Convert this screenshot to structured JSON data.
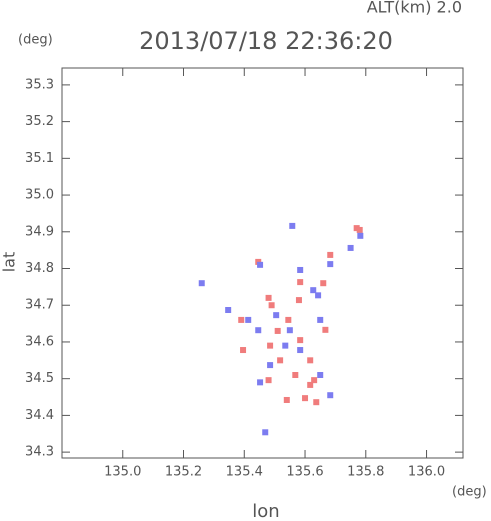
{
  "chart_data": {
    "type": "scatter",
    "title": "2013/07/18 22:36:20",
    "subtitle": "ALT(km)  2.0",
    "y_unit": "(deg)",
    "x_unit": "(deg)",
    "xlabel": "lon",
    "ylabel": "lat",
    "xlim": [
      134.8,
      136.12
    ],
    "ylim": [
      34.284,
      35.346
    ],
    "xticks": [
      {
        "value": 135.0,
        "label": "135.0"
      },
      135.2,
      135.4,
      135.6,
      135.8,
      {
        "value": 136.0,
        "label": "136.0"
      }
    ],
    "yticks": [
      34.3,
      34.4,
      34.5,
      34.6,
      34.7,
      34.8,
      34.9,
      {
        "value": 35.0,
        "label": "35.0"
      },
      35.1,
      35.2,
      35.3
    ],
    "series": [
      {
        "color": "#f07c7c",
        "x": [
          135.78,
          135.77,
          135.584,
          135.58,
          135.48,
          135.49,
          135.39,
          135.396,
          135.545,
          135.584,
          135.518,
          135.568,
          135.48,
          135.617,
          135.6,
          135.637,
          135.63,
          135.54,
          135.485,
          135.66,
          135.683,
          135.446,
          135.617,
          135.51,
          135.667
        ],
        "y": [
          34.905,
          34.91,
          34.763,
          34.714,
          34.72,
          34.7,
          34.66,
          34.578,
          34.66,
          34.605,
          34.55,
          34.51,
          34.496,
          34.483,
          34.447,
          34.436,
          34.496,
          34.442,
          34.59,
          34.76,
          34.837,
          34.818,
          34.55,
          34.63,
          34.633
        ]
      },
      {
        "color": "#7c7cf0",
        "x": [
          135.782,
          135.683,
          135.584,
          135.452,
          135.558,
          135.26,
          135.347,
          135.446,
          135.55,
          135.584,
          135.485,
          135.452,
          135.65,
          135.627,
          135.643,
          135.535,
          135.469,
          135.683,
          135.413,
          135.65,
          135.505,
          135.75
        ],
        "y": [
          34.889,
          34.812,
          34.796,
          34.81,
          34.916,
          34.76,
          34.687,
          34.632,
          34.632,
          34.578,
          34.537,
          34.49,
          34.51,
          34.741,
          34.727,
          34.59,
          34.354,
          34.455,
          34.66,
          34.66,
          34.673,
          34.856
        ]
      }
    ]
  }
}
